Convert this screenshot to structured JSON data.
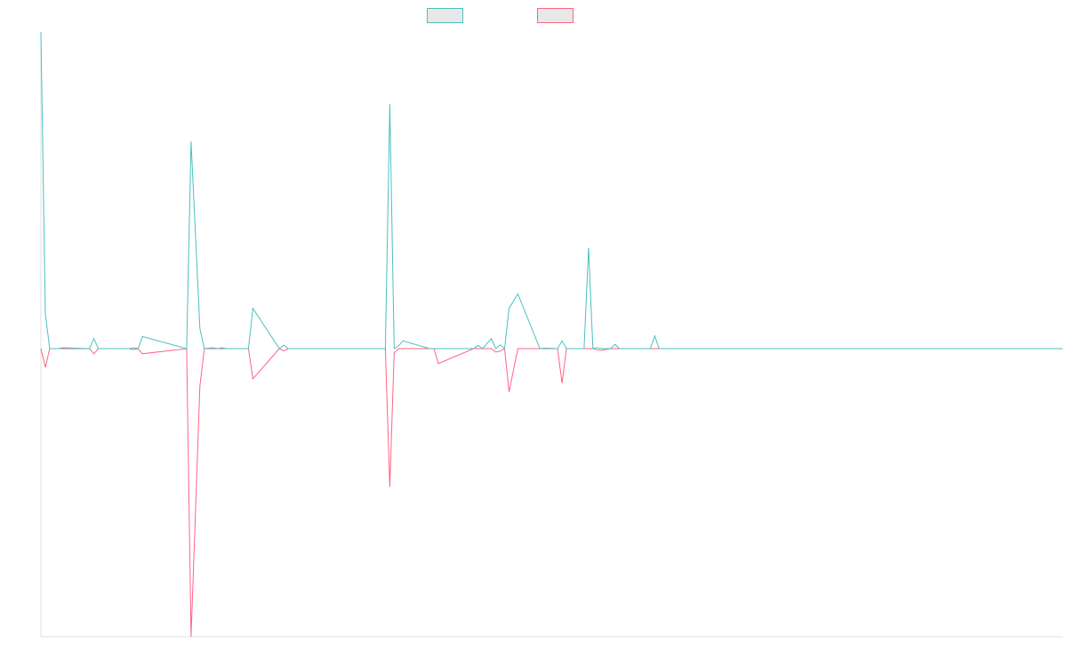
{
  "chart_data": {
    "type": "line",
    "grid": false,
    "legend_position": "top-center",
    "ylim": [
      -100,
      110
    ],
    "x": [
      0,
      1,
      2,
      4,
      5,
      11,
      12,
      13,
      20,
      21,
      22,
      23,
      33,
      34,
      36,
      37,
      39,
      40,
      41,
      42,
      43,
      44,
      47,
      48,
      54,
      55,
      56,
      78,
      79,
      80,
      81,
      82,
      88,
      89,
      90,
      98,
      99,
      100,
      102,
      103,
      104,
      105,
      106,
      108,
      113,
      114,
      117,
      118,
      119,
      123,
      124,
      125,
      126,
      127,
      129,
      130,
      131,
      137,
      138,
      139,
      140,
      150,
      900
    ],
    "series": [
      {
        "name": "",
        "color": "#4bc0c0",
        "values": [
          110,
          12,
          0,
          0,
          0.3,
          0,
          3.5,
          0,
          0,
          0.3,
          0,
          4.2,
          0,
          72,
          7,
          0,
          0.3,
          0,
          0.3,
          0,
          0,
          0,
          0,
          14,
          0,
          1.2,
          0,
          0,
          85,
          0,
          1,
          2.7,
          0,
          0,
          0,
          0,
          1.1,
          0,
          3.5,
          0,
          1.3,
          0,
          14,
          19,
          0,
          0.2,
          0,
          2.7,
          0,
          0,
          35,
          0,
          0.3,
          0,
          0,
          1.5,
          0,
          0,
          0,
          4.4,
          0,
          0,
          0
        ]
      },
      {
        "name": "",
        "color": "#ff6384",
        "values": [
          0,
          -6.5,
          0,
          0,
          0,
          0,
          -1.8,
          0,
          0,
          -0.3,
          0,
          -1.8,
          0,
          -100,
          -13,
          0,
          0,
          0,
          0,
          0,
          0,
          0,
          0,
          -10.5,
          0,
          -0.8,
          0,
          0,
          -48,
          -1.5,
          0,
          0,
          0,
          0,
          -5.2,
          0,
          0,
          0,
          0,
          -1.2,
          -0.9,
          0,
          -15,
          0,
          0,
          0,
          0,
          -12,
          0,
          0,
          0,
          0,
          -0.4,
          -0.6,
          0,
          0,
          0,
          0,
          0,
          0,
          0,
          0,
          0
        ]
      }
    ]
  }
}
